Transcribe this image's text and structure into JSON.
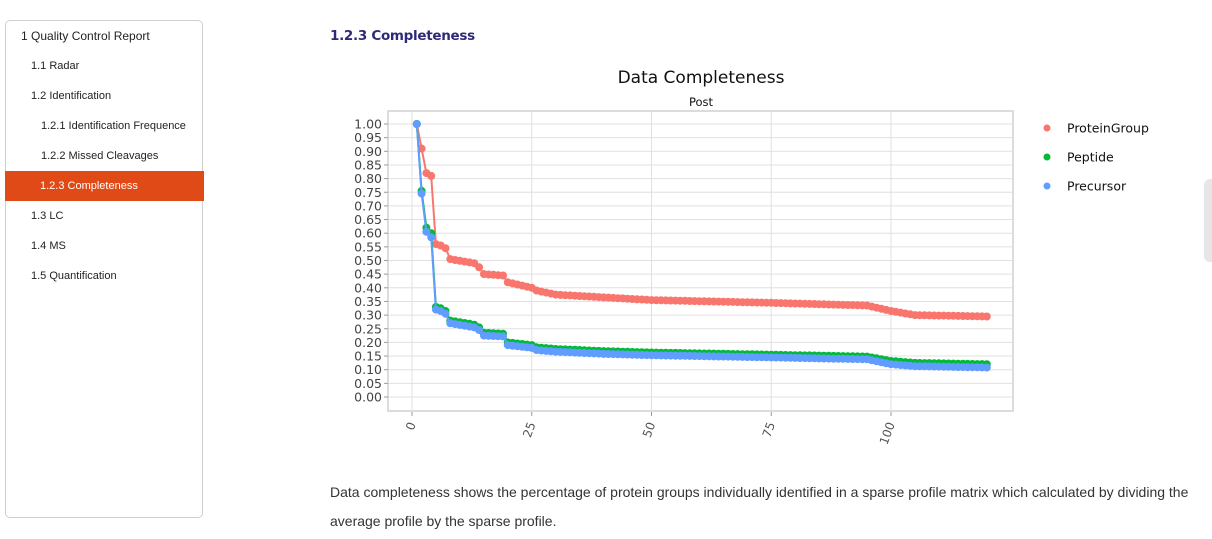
{
  "sidebar": {
    "items": [
      {
        "label": "1 Quality Control Report",
        "level": 1,
        "active": false
      },
      {
        "label": "1.1 Radar",
        "level": 2,
        "active": false
      },
      {
        "label": "1.2 Identification",
        "level": 2,
        "active": false
      },
      {
        "label": "1.2.1 Identification Frequence",
        "level": 3,
        "active": false
      },
      {
        "label": "1.2.2 Missed Cleavages",
        "level": 3,
        "active": false
      },
      {
        "label": "1.2.3 Completeness",
        "level": 3,
        "active": true
      },
      {
        "label": "1.3 LC",
        "level": 2,
        "active": false
      },
      {
        "label": "1.4 MS",
        "level": 2,
        "active": false
      },
      {
        "label": "1.5 Quantification",
        "level": 2,
        "active": false
      }
    ],
    "active_color": "#e04a17"
  },
  "section": {
    "title": "1.2.3 Completeness",
    "description": "Data completeness shows the percentage of protein groups individually identified in a sparse profile matrix which calculated by dividing the average profile by the sparse profile."
  },
  "chart_data": {
    "type": "line",
    "title": "Data Completeness",
    "subtitle": "Post",
    "xlabel": "",
    "ylabel": "",
    "xlim": [
      -5,
      125
    ],
    "ylim": [
      -0.05,
      1.05
    ],
    "x_ticks": [
      "0",
      "25",
      "50",
      "75",
      "100"
    ],
    "x_tick_values": [
      0,
      25,
      50,
      75,
      100
    ],
    "y_ticks": [
      "1.00",
      "0.95",
      "0.90",
      "0.85",
      "0.80",
      "0.75",
      "0.70",
      "0.65",
      "0.60",
      "0.55",
      "0.50",
      "0.45",
      "0.40",
      "0.35",
      "0.30",
      "0.25",
      "0.20",
      "0.15",
      "0.10",
      "0.05",
      "0.00"
    ],
    "grid": true,
    "legend_position": "right",
    "n_points": 120,
    "series": [
      {
        "name": "ProteinGroup",
        "color": "#f8766d",
        "knots_x": [
          1,
          2,
          3,
          4,
          5,
          6,
          7,
          8,
          13,
          14,
          15,
          19,
          20,
          25,
          26,
          30,
          40,
          50,
          75,
          95,
          100,
          105,
          120
        ],
        "knots_y": [
          1.0,
          0.91,
          0.82,
          0.81,
          0.56,
          0.555,
          0.545,
          0.505,
          0.49,
          0.475,
          0.45,
          0.445,
          0.42,
          0.4,
          0.39,
          0.375,
          0.365,
          0.355,
          0.345,
          0.335,
          0.315,
          0.3,
          0.295
        ]
      },
      {
        "name": "Peptide",
        "color": "#00ba38",
        "knots_x": [
          1,
          2,
          3,
          4,
          5,
          6,
          7,
          8,
          13,
          14,
          15,
          19,
          20,
          25,
          26,
          30,
          40,
          50,
          75,
          95,
          100,
          105,
          120
        ],
        "knots_y": [
          1.0,
          0.755,
          0.62,
          0.6,
          0.33,
          0.325,
          0.315,
          0.28,
          0.265,
          0.255,
          0.235,
          0.232,
          0.2,
          0.19,
          0.182,
          0.176,
          0.168,
          0.163,
          0.155,
          0.148,
          0.132,
          0.125,
          0.12
        ]
      },
      {
        "name": "Precursor",
        "color": "#619cff",
        "knots_x": [
          1,
          2,
          3,
          4,
          5,
          6,
          7,
          8,
          13,
          14,
          15,
          19,
          20,
          25,
          26,
          30,
          40,
          50,
          75,
          95,
          100,
          105,
          120
        ],
        "knots_y": [
          1.0,
          0.745,
          0.605,
          0.585,
          0.32,
          0.315,
          0.305,
          0.27,
          0.255,
          0.245,
          0.225,
          0.222,
          0.19,
          0.18,
          0.172,
          0.166,
          0.158,
          0.153,
          0.145,
          0.138,
          0.12,
          0.113,
          0.108
        ]
      }
    ]
  }
}
